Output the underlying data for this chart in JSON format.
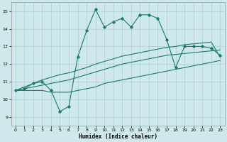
{
  "xlabel": "Humidex (Indice chaleur)",
  "xlim": [
    -0.5,
    23.5
  ],
  "ylim": [
    8.5,
    15.5
  ],
  "yticks": [
    9,
    10,
    11,
    12,
    13,
    14,
    15
  ],
  "xticks": [
    0,
    1,
    2,
    3,
    4,
    5,
    6,
    7,
    8,
    9,
    10,
    11,
    12,
    13,
    14,
    15,
    16,
    17,
    18,
    19,
    20,
    21,
    22,
    23
  ],
  "bg_color": "#cfe8ec",
  "line_color": "#1a7a6e",
  "grid_color": "#aacdd4",
  "main_y": [
    10.5,
    10.6,
    10.9,
    11.0,
    10.5,
    9.3,
    9.6,
    12.4,
    13.9,
    15.1,
    14.1,
    14.4,
    14.6,
    14.1,
    14.8,
    14.8,
    14.6,
    13.4,
    11.8,
    13.0,
    13.0,
    13.0,
    12.9,
    12.5
  ],
  "low_y": [
    10.5,
    10.5,
    10.5,
    10.5,
    10.4,
    10.4,
    10.4,
    10.5,
    10.6,
    10.7,
    10.9,
    11.0,
    11.1,
    11.2,
    11.3,
    11.4,
    11.5,
    11.6,
    11.7,
    11.8,
    11.9,
    12.0,
    12.1,
    12.2
  ],
  "mid_y": [
    10.5,
    10.6,
    10.7,
    10.8,
    10.9,
    11.0,
    11.1,
    11.25,
    11.4,
    11.55,
    11.7,
    11.85,
    12.0,
    12.1,
    12.2,
    12.3,
    12.4,
    12.5,
    12.55,
    12.6,
    12.65,
    12.7,
    12.75,
    12.8
  ],
  "high_y": [
    10.5,
    10.7,
    10.9,
    11.1,
    11.25,
    11.4,
    11.5,
    11.65,
    11.8,
    12.0,
    12.15,
    12.3,
    12.45,
    12.55,
    12.65,
    12.75,
    12.85,
    12.95,
    13.0,
    13.1,
    13.15,
    13.2,
    13.25,
    12.4
  ]
}
